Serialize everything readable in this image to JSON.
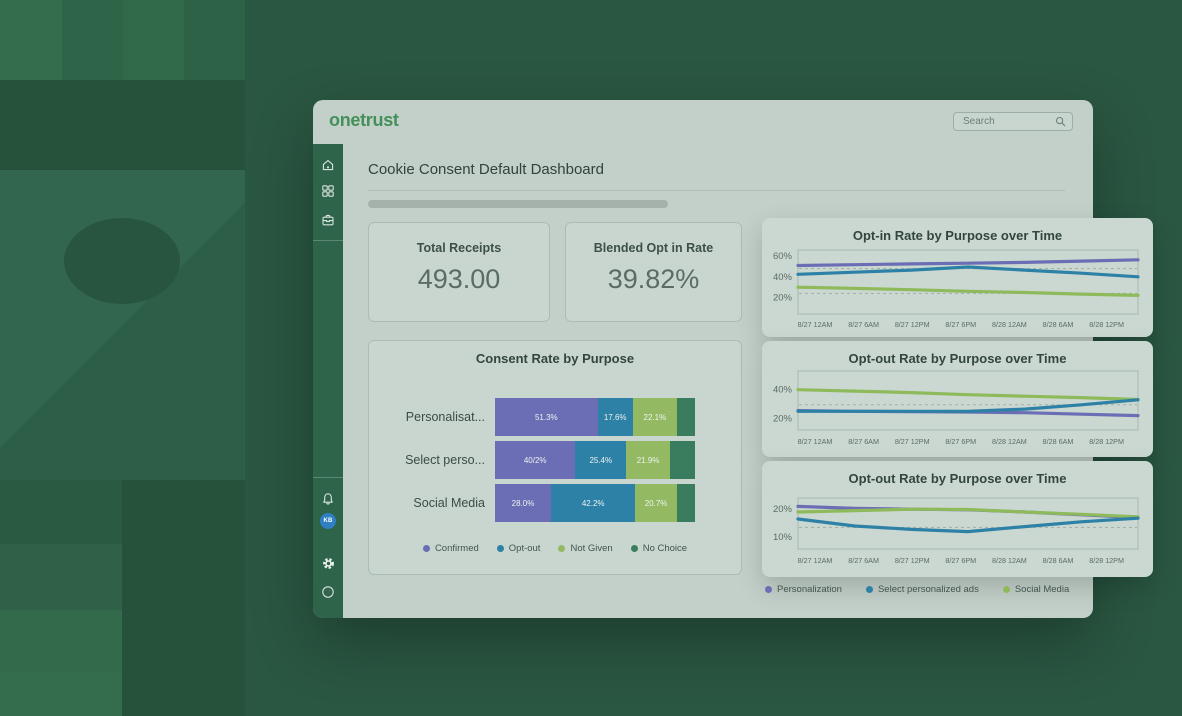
{
  "header": {
    "logo": "onetrust",
    "search_placeholder": "Search"
  },
  "sidebar": {
    "top_icons": [
      "home-icon",
      "apps-grid-icon",
      "inbox-icon"
    ],
    "bottom_icons": [
      "bell-icon",
      "avatar",
      "gear-icon",
      "help-icon"
    ],
    "avatar_initials": "KB"
  },
  "page": {
    "title": "Cookie Consent Default Dashboard"
  },
  "stats": [
    {
      "label": "Total Receipts",
      "value": "493.00"
    },
    {
      "label": "Blended Opt in Rate",
      "value": "39.82%"
    }
  ],
  "colors": {
    "brand_green": "#44905A",
    "sidebar_green": "#2E6449",
    "avatar_blue": "#2F80C3",
    "series_purple": "#6B6EB5",
    "series_teal": "#2E81A6",
    "series_light_green": "#93BA62",
    "series_dark_green": "#3A7D5E"
  },
  "chart_data": [
    {
      "type": "bar",
      "orientation": "horizontal-stacked",
      "title": "Consent Rate by Purpose",
      "categories": [
        "Personalisat...",
        "Select perso...",
        "Social Media"
      ],
      "series": [
        {
          "name": "Confirmed",
          "color": "#6B6EB5",
          "values": [
            51.3,
            40.2,
            28.0
          ],
          "labels": [
            "51.3%",
            "40/2%",
            "28.0%"
          ]
        },
        {
          "name": "Opt-out",
          "color": "#2E81A6",
          "values": [
            17.6,
            25.4,
            42.2
          ],
          "labels": [
            "17.6%",
            "25.4%",
            "42.2%"
          ]
        },
        {
          "name": "Not Given",
          "color": "#93BA62",
          "values": [
            22.1,
            21.9,
            20.7
          ],
          "labels": [
            "22.1%",
            "21.9%",
            "20.7%"
          ]
        },
        {
          "name": "No Choice",
          "color": "#3A7D5E",
          "values": [
            9.0,
            12.5,
            9.1
          ],
          "labels": [
            "",
            "",
            ""
          ]
        }
      ],
      "xlim": [
        0,
        100
      ],
      "legend_position": "bottom"
    },
    {
      "type": "line",
      "title": "Opt-in Rate by Purpose over Time",
      "x": [
        "8/27 12AM",
        "8/27 6AM",
        "8/27 12PM",
        "8/27 6PM",
        "8/28 12AM",
        "8/28 6AM",
        "8/28 12PM"
      ],
      "yticks": [
        {
          "label": "60%",
          "value": 60
        },
        {
          "label": "40%",
          "value": 40
        },
        {
          "label": "20%",
          "value": 20
        }
      ],
      "ylim": [
        4,
        66
      ],
      "dashed_gridlines": [
        48,
        24
      ],
      "series": [
        {
          "name": "Personalization",
          "color": "#6B6EB5",
          "values": [
            51,
            51.8,
            52.5,
            53.2,
            54,
            55.2,
            56.5
          ]
        },
        {
          "name": "Select personalized ads",
          "color": "#2E81A6",
          "values": [
            42.5,
            44.5,
            46.5,
            49.5,
            46.5,
            43.5,
            40
          ]
        },
        {
          "name": "Social Media",
          "color": "#8FBA5C",
          "values": [
            30,
            28.8,
            27.5,
            26,
            24.8,
            23.3,
            22
          ]
        }
      ]
    },
    {
      "type": "line",
      "title": "Opt-out Rate by Purpose over Time",
      "x": [
        "8/27 12AM",
        "8/27 6AM",
        "8/27 12PM",
        "8/27 6PM",
        "8/28 12AM",
        "8/28 6AM",
        "8/28 12PM"
      ],
      "yticks": [
        {
          "label": "40%",
          "value": 40
        },
        {
          "label": "20%",
          "value": 20
        }
      ],
      "ylim": [
        12,
        53
      ],
      "dashed_gridlines": [
        29.5
      ],
      "series": [
        {
          "name": "Personalization",
          "color": "#6B6EB5",
          "values": [
            25.5,
            25,
            24.8,
            24.5,
            24,
            23,
            22
          ]
        },
        {
          "name": "Select personalized ads",
          "color": "#2E81A6",
          "values": [
            25,
            25,
            25,
            25,
            26.5,
            29.5,
            33
          ]
        },
        {
          "name": "Social Media",
          "color": "#8FBA5C",
          "values": [
            40,
            39,
            38,
            36.5,
            35.5,
            34.5,
            33.2
          ]
        }
      ]
    },
    {
      "type": "line",
      "title": "Opt-out Rate by Purpose over Time",
      "x": [
        "8/27 12AM",
        "8/27 6AM",
        "8/27 12PM",
        "8/27 6PM",
        "8/28 12AM",
        "8/28 6AM",
        "8/28 12PM"
      ],
      "yticks": [
        {
          "label": "20%",
          "value": 20
        },
        {
          "label": "10%",
          "value": 10
        }
      ],
      "ylim": [
        5.8,
        24
      ],
      "dashed_gridlines": [
        13.5
      ],
      "series": [
        {
          "name": "Personalization",
          "color": "#6B6EB5",
          "values": [
            21,
            20.3,
            20,
            19.8,
            19,
            18,
            17
          ]
        },
        {
          "name": "Select personalized ads",
          "color": "#2E81A6",
          "values": [
            16.5,
            14,
            12.8,
            12,
            13.8,
            15.5,
            16.8
          ]
        },
        {
          "name": "Social Media",
          "color": "#8FBA5C",
          "values": [
            19,
            19.5,
            20,
            19.9,
            19,
            18.2,
            17.3
          ]
        }
      ]
    }
  ]
}
